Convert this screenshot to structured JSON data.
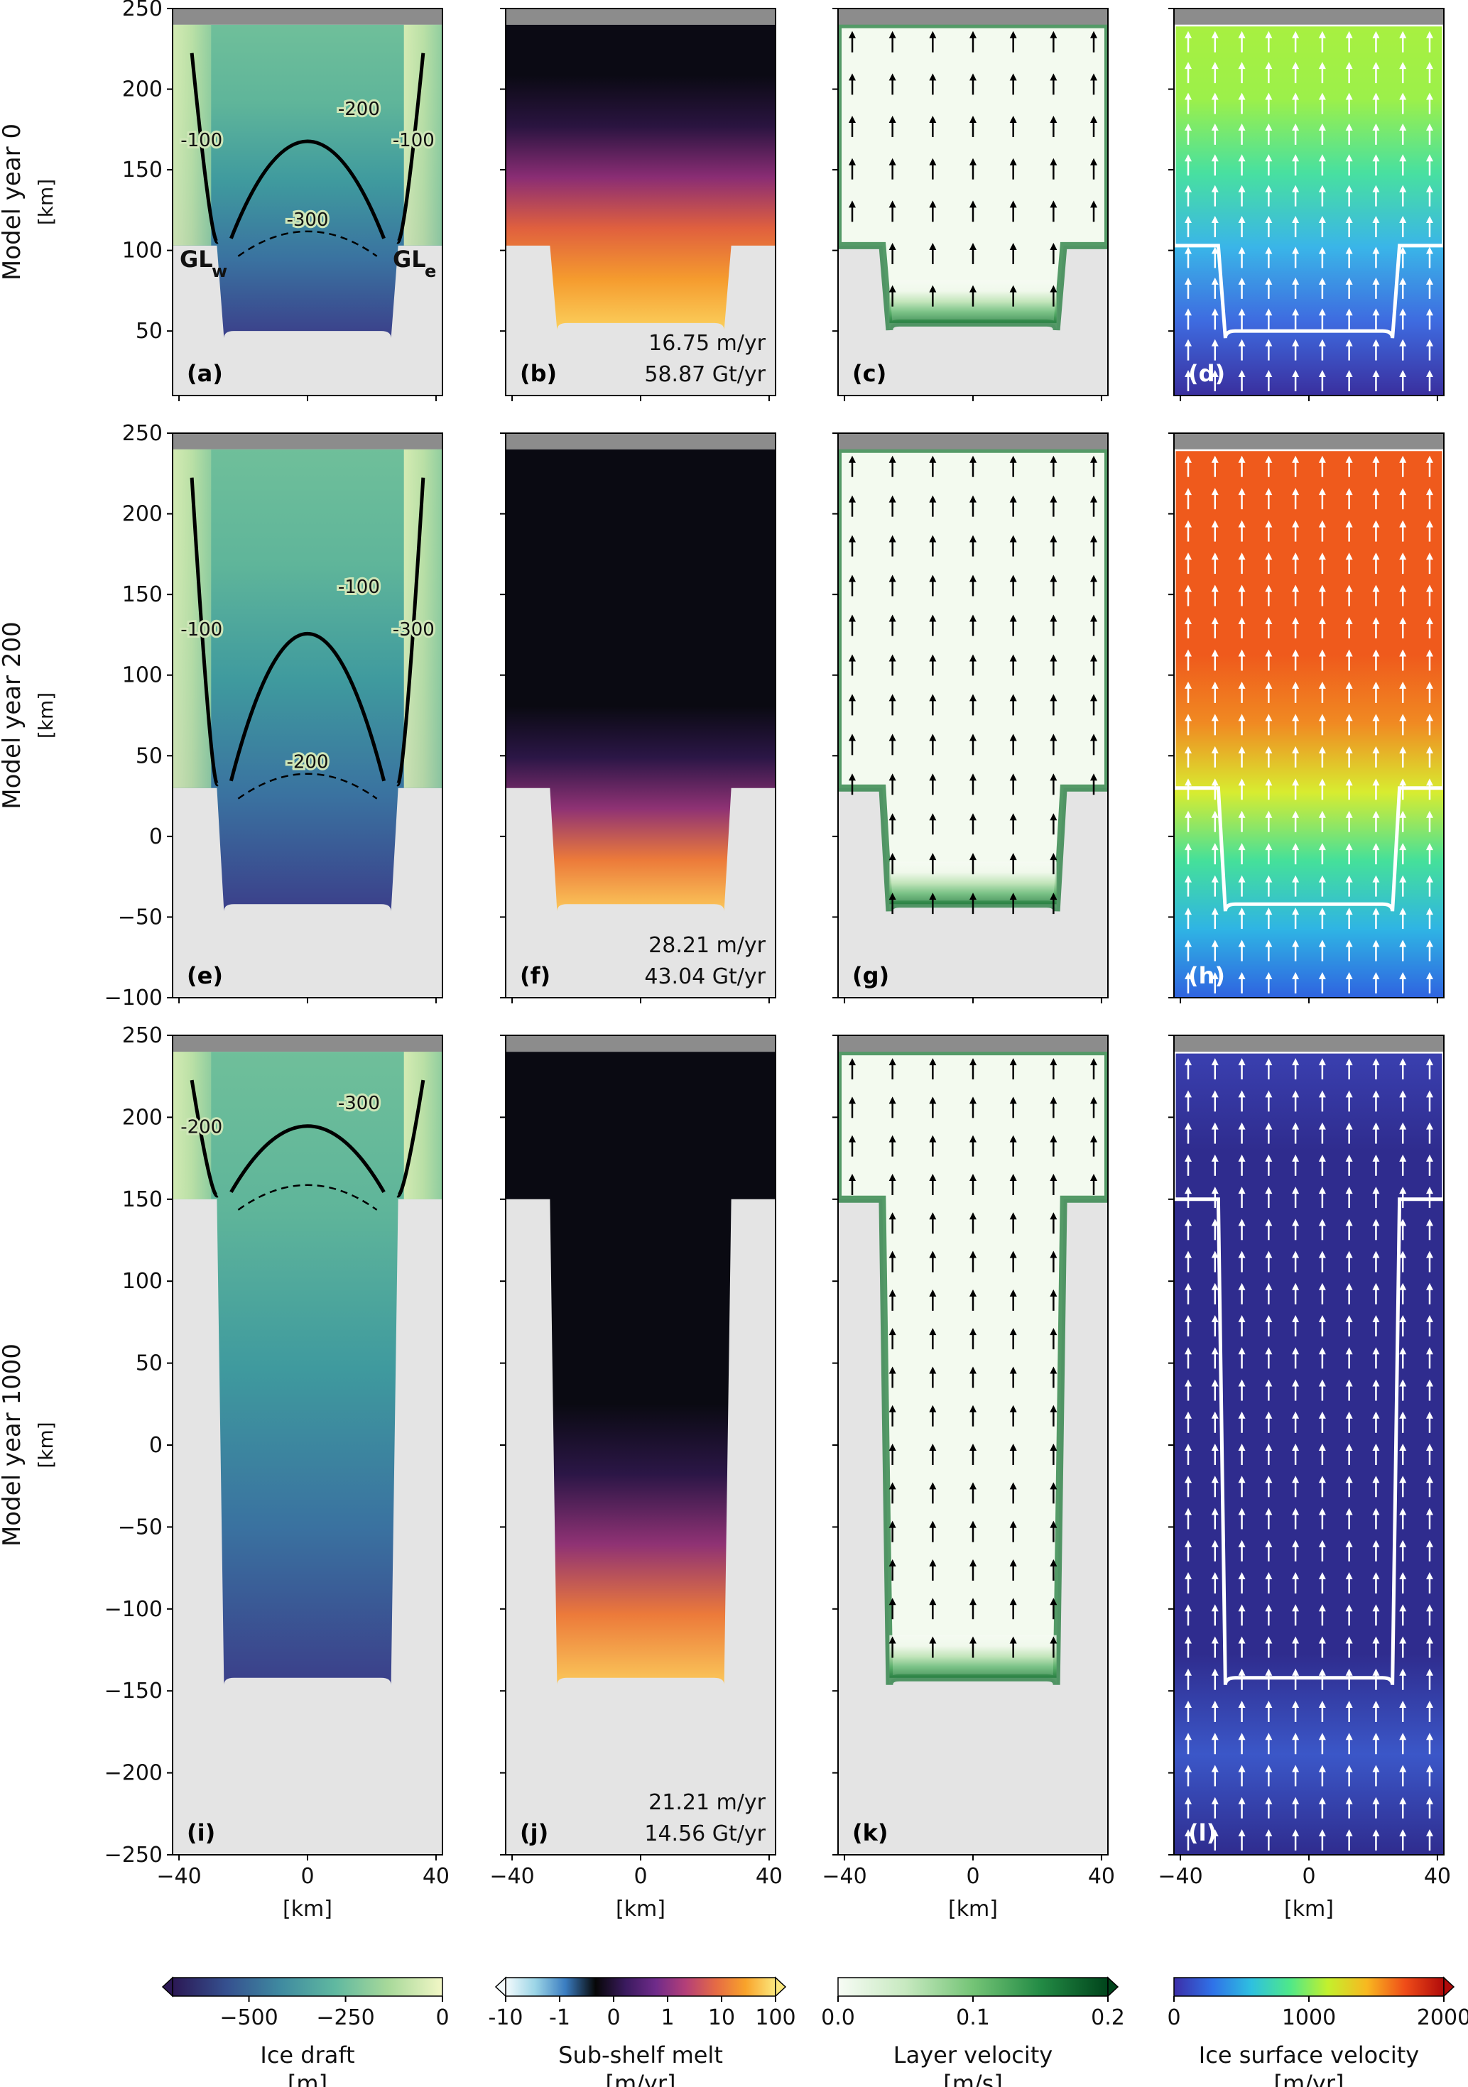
{
  "chart_data": {
    "type": "heatmap",
    "layout": "4 columns x 3 rows of map panels",
    "rows": [
      {
        "label": "Model year 0",
        "unit": "[km]",
        "ylim": [
          10,
          250
        ],
        "yticks": [
          50,
          100,
          150,
          200,
          250
        ]
      },
      {
        "label": "Model year 200",
        "unit": "[km]",
        "ylim": [
          -100,
          250
        ],
        "yticks": [
          -100,
          -50,
          0,
          50,
          100,
          150,
          200,
          250
        ]
      },
      {
        "label": "Model year 1000",
        "unit": "[km]",
        "ylim": [
          -250,
          250
        ],
        "yticks": [
          -250,
          -200,
          -150,
          -100,
          -50,
          0,
          50,
          100,
          150,
          200,
          250
        ]
      }
    ],
    "xlim": [
      -42,
      42
    ],
    "xticks": [
      -40,
      0,
      40
    ],
    "xlabel": "[km]",
    "shelf_edge_y": 240,
    "panels": [
      {
        "label": "(a)",
        "row": 0,
        "col": 0,
        "field": "ice_draft",
        "gl_y": 103,
        "cavity_bottom": 50,
        "contour_labels": [
          "-100",
          "-200",
          "-300",
          "-100"
        ],
        "gl_labels": [
          "GL",
          "w",
          "GL",
          "e"
        ]
      },
      {
        "label": "(b)",
        "row": 0,
        "col": 1,
        "field": "melt",
        "gl_y": 103,
        "cavity_bottom": 55,
        "mean_melt": "16.75 m/yr",
        "total_melt": "58.87 Gt/yr"
      },
      {
        "label": "(c)",
        "row": 0,
        "col": 2,
        "field": "layer_velocity",
        "gl_y": 103,
        "cavity_bottom": 55
      },
      {
        "label": "(d)",
        "row": 0,
        "col": 3,
        "field": "ice_speed",
        "gl_y": 103,
        "cavity_bottom": 50
      },
      {
        "label": "(e)",
        "row": 1,
        "col": 0,
        "field": "ice_draft",
        "gl_y": 30,
        "cavity_bottom": -42,
        "contour_labels": [
          "-100",
          "-100",
          "-200",
          "-300"
        ]
      },
      {
        "label": "(f)",
        "row": 1,
        "col": 1,
        "field": "melt",
        "gl_y": 30,
        "cavity_bottom": -42,
        "mean_melt": "28.21 m/yr",
        "total_melt": "43.04 Gt/yr"
      },
      {
        "label": "(g)",
        "row": 1,
        "col": 2,
        "field": "layer_velocity",
        "gl_y": 30,
        "cavity_bottom": -42
      },
      {
        "label": "(h)",
        "row": 1,
        "col": 3,
        "field": "ice_speed",
        "gl_y": 30,
        "cavity_bottom": -42
      },
      {
        "label": "(i)",
        "row": 2,
        "col": 0,
        "field": "ice_draft",
        "gl_y": 150,
        "cavity_bottom": -142,
        "contour_labels": [
          "-200",
          "-300"
        ]
      },
      {
        "label": "(j)",
        "row": 2,
        "col": 1,
        "field": "melt",
        "gl_y": 150,
        "cavity_bottom": -142,
        "mean_melt": "21.21 m/yr",
        "total_melt": "14.56 Gt/yr"
      },
      {
        "label": "(k)",
        "row": 2,
        "col": 2,
        "field": "layer_velocity",
        "gl_y": 150,
        "cavity_bottom": -142
      },
      {
        "label": "(l)",
        "row": 2,
        "col": 3,
        "field": "ice_speed",
        "gl_y": 150,
        "cavity_bottom": -142
      }
    ],
    "colorbars": [
      {
        "label": "Ice draft",
        "unit": "[m]",
        "ticks": [
          "−500",
          "−250",
          "0"
        ],
        "range": [
          -700,
          0
        ],
        "extend": "min",
        "colors": [
          "#2b1854",
          "#35508f",
          "#3f8aa0",
          "#5fb8a0",
          "#a8d99a",
          "#f2f7c6"
        ]
      },
      {
        "label": "Sub-shelf melt",
        "unit": "[m/yr]",
        "ticks": [
          "-10",
          "-1",
          "0",
          "1",
          "10",
          "100"
        ],
        "range": [
          -10,
          100
        ],
        "extend": "both",
        "colors": [
          "#f4fbfd",
          "#9ad4e6",
          "#3a7cc0",
          "#070707",
          "#3a1a5e",
          "#6f2b8a",
          "#b43f78",
          "#e56a45",
          "#f9a32a",
          "#fbe87e"
        ]
      },
      {
        "label": "Layer velocity",
        "unit": "[m/s]",
        "ticks": [
          "0.0",
          "0.1",
          "0.2"
        ],
        "range": [
          0,
          0.2
        ],
        "extend": "max",
        "colors": [
          "#f7fcf5",
          "#c7e9c0",
          "#74c476",
          "#238b45",
          "#00441b"
        ]
      },
      {
        "label": "Ice surface velocity",
        "unit": "[m/yr]",
        "ticks": [
          "0",
          "1000",
          "2000"
        ],
        "range": [
          0,
          2000
        ],
        "extend": "max",
        "colors": [
          "#3c2ea8",
          "#2f72e8",
          "#2ec0e0",
          "#4ee88a",
          "#c4f02c",
          "#f8b820",
          "#ef4c18",
          "#b00a0a"
        ]
      }
    ]
  }
}
